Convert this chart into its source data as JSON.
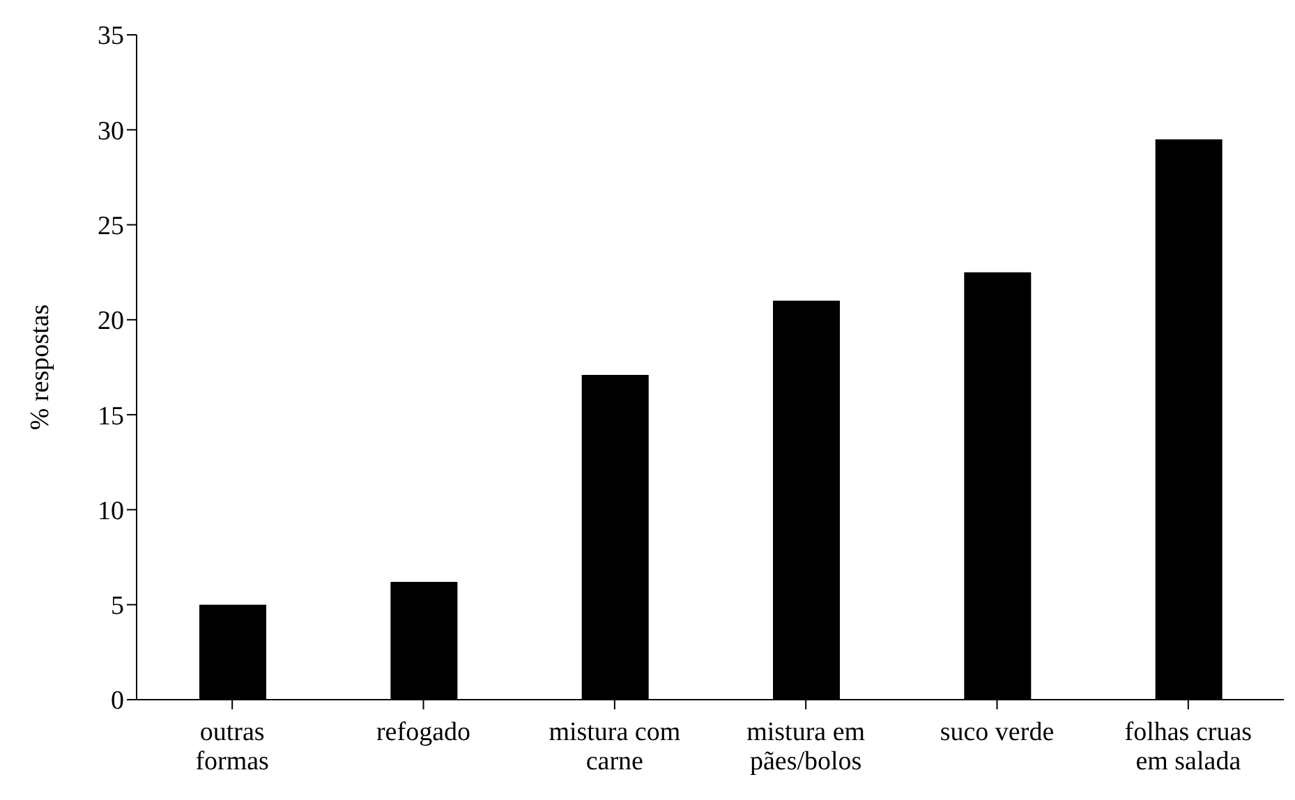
{
  "chart_data": {
    "type": "bar",
    "ylabel": "% respostas",
    "categories": [
      "outras formas",
      "refogado",
      "mistura com carne",
      "mistura em pães/bolos",
      "suco verde",
      "folhas cruas em salada"
    ],
    "values": [
      5.0,
      6.2,
      17.1,
      21.0,
      22.5,
      29.5
    ],
    "color": "#000000",
    "ylim": [
      0,
      35
    ],
    "yticks": [
      0,
      5,
      10,
      15,
      20,
      25,
      30,
      35
    ],
    "grid": false,
    "legend": false
  }
}
